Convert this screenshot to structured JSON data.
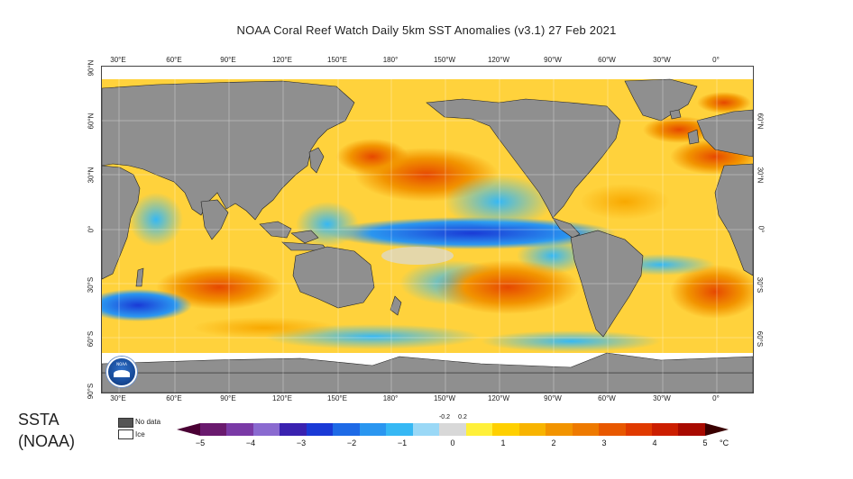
{
  "title": "NOAA Coral Reef Watch Daily 5km SST Anomalies  (v3.1)    27 Feb 2021",
  "lon_labels_top": [
    "30°E",
    "60°E",
    "90°E",
    "120°E",
    "150°E",
    "180°",
    "150°W",
    "120°W",
    "90°W",
    "60°W",
    "30°W",
    "0°"
  ],
  "lon_labels_bottom": [
    "30°E",
    "60°E",
    "90°E",
    "120°E",
    "150°E",
    "180°",
    "150°W",
    "120°W",
    "90°W",
    "60°W",
    "30°W",
    "0°"
  ],
  "lat_labels_left": [
    "90°N",
    "60°N",
    "30°N",
    "0°",
    "30°S",
    "60°S",
    "90°S"
  ],
  "lat_labels_right": [
    "60°N",
    "30°N",
    "0°",
    "30°S",
    "60°S"
  ],
  "ssta_label_line1": "SSTA",
  "ssta_label_line2": "(NOAA)",
  "legend": {
    "no_data": "No data",
    "ice": "Ice",
    "no_data_color": "#555555",
    "ice_color": "#ffffff"
  },
  "colorbar": {
    "ticks": [
      "−5",
      "−4",
      "−3",
      "−2",
      "−1",
      "0",
      "1",
      "2",
      "3",
      "4",
      "5"
    ],
    "small_ticks": [
      "-0.2",
      "0.2"
    ],
    "unit": "°C",
    "colors": [
      "#4a0034",
      "#6a1a6e",
      "#7a3aa6",
      "#8a6ad0",
      "#3a22b0",
      "#1a3ad6",
      "#1e6ae6",
      "#2a96f0",
      "#36b8f4",
      "#9ad8f6",
      "#d8d8d8",
      "#fff03a",
      "#ffd000",
      "#f8b400",
      "#f29400",
      "#ee7a00",
      "#e85800",
      "#e03a00",
      "#cc1e00",
      "#a80a00",
      "#7a0000"
    ]
  },
  "map": {
    "land_color": "#8f8f8f",
    "ocean_base": "#ffd23c"
  },
  "logo_text": "NOAA"
}
